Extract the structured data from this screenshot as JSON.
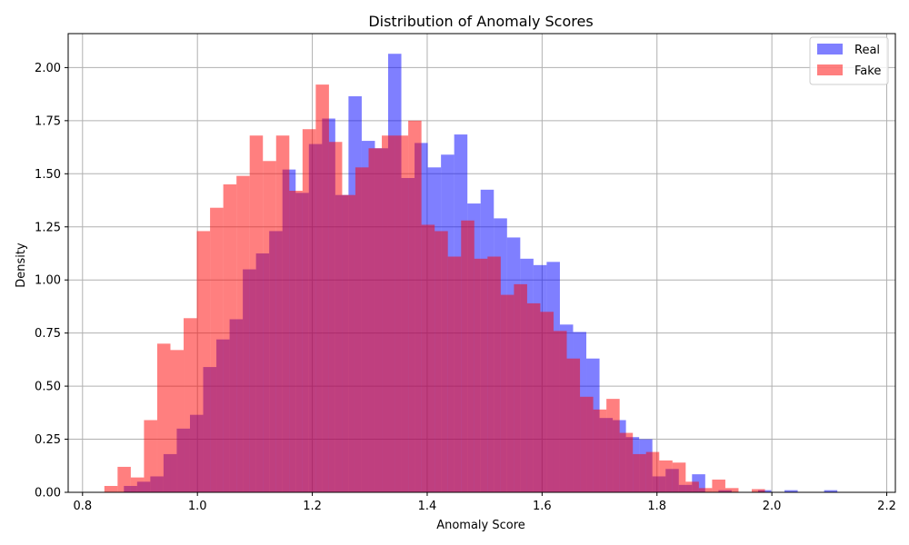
{
  "chart_data": {
    "type": "bar",
    "title": "Distribution of Anomaly Scores",
    "xlabel": "Anomaly Score",
    "ylabel": "Density",
    "xlim": [
      0.775,
      2.215
    ],
    "ylim": [
      0.0,
      2.16
    ],
    "xticks": [
      "0.8",
      "1.0",
      "1.2",
      "1.4",
      "1.6",
      "1.8",
      "2.0",
      "2.2"
    ],
    "yticks": [
      "0.00",
      "0.25",
      "0.50",
      "0.75",
      "1.00",
      "1.25",
      "1.50",
      "1.75",
      "2.00"
    ],
    "grid": true,
    "legend_position": "top-right",
    "series": [
      {
        "name": "Real",
        "color": "#0000ff",
        "opacity": 0.5,
        "bins": [
          [
            0.872,
            0.895,
            0.03
          ],
          [
            0.895,
            0.918,
            0.05
          ],
          [
            0.918,
            0.941,
            0.075
          ],
          [
            0.941,
            0.964,
            0.18
          ],
          [
            0.964,
            0.987,
            0.3
          ],
          [
            0.987,
            1.01,
            0.365
          ],
          [
            1.01,
            1.033,
            0.59
          ],
          [
            1.033,
            1.056,
            0.72
          ],
          [
            1.056,
            1.079,
            0.815
          ],
          [
            1.079,
            1.102,
            1.05
          ],
          [
            1.102,
            1.125,
            1.125
          ],
          [
            1.125,
            1.148,
            1.23
          ],
          [
            1.148,
            1.171,
            1.52
          ],
          [
            1.171,
            1.194,
            1.41
          ],
          [
            1.194,
            1.217,
            1.64
          ],
          [
            1.217,
            1.24,
            1.76
          ],
          [
            1.24,
            1.263,
            1.4
          ],
          [
            1.263,
            1.286,
            1.865
          ],
          [
            1.286,
            1.309,
            1.655
          ],
          [
            1.309,
            1.332,
            1.62
          ],
          [
            1.332,
            1.355,
            2.065
          ],
          [
            1.355,
            1.378,
            1.48
          ],
          [
            1.378,
            1.401,
            1.645
          ],
          [
            1.401,
            1.424,
            1.53
          ],
          [
            1.424,
            1.447,
            1.59
          ],
          [
            1.447,
            1.47,
            1.685
          ],
          [
            1.47,
            1.493,
            1.36
          ],
          [
            1.493,
            1.516,
            1.425
          ],
          [
            1.516,
            1.539,
            1.29
          ],
          [
            1.539,
            1.562,
            1.2
          ],
          [
            1.562,
            1.585,
            1.1
          ],
          [
            1.585,
            1.608,
            1.07
          ],
          [
            1.608,
            1.631,
            1.085
          ],
          [
            1.631,
            1.654,
            0.79
          ],
          [
            1.654,
            1.677,
            0.755
          ],
          [
            1.677,
            1.7,
            0.63
          ],
          [
            1.7,
            1.723,
            0.35
          ],
          [
            1.723,
            1.746,
            0.34
          ],
          [
            1.746,
            1.769,
            0.26
          ],
          [
            1.769,
            1.792,
            0.25
          ],
          [
            1.792,
            1.815,
            0.075
          ],
          [
            1.815,
            1.838,
            0.11
          ],
          [
            1.838,
            1.861,
            0.035
          ],
          [
            1.861,
            1.884,
            0.085
          ],
          [
            1.884,
            1.907,
            0.0
          ],
          [
            1.907,
            1.93,
            0.01
          ],
          [
            1.93,
            1.953,
            0.0
          ],
          [
            1.953,
            1.976,
            0.0
          ],
          [
            1.976,
            1.999,
            0.01
          ],
          [
            1.999,
            2.022,
            0.0
          ],
          [
            2.022,
            2.045,
            0.01
          ],
          [
            2.045,
            2.068,
            0.0
          ],
          [
            2.068,
            2.091,
            0.0
          ],
          [
            2.091,
            2.114,
            0.01
          ]
        ]
      },
      {
        "name": "Fake",
        "color": "#ff0000",
        "opacity": 0.5,
        "bins": [
          [
            0.838,
            0.861,
            0.03
          ],
          [
            0.861,
            0.884,
            0.12
          ],
          [
            0.884,
            0.907,
            0.07
          ],
          [
            0.907,
            0.93,
            0.34
          ],
          [
            0.93,
            0.953,
            0.7
          ],
          [
            0.953,
            0.976,
            0.67
          ],
          [
            0.976,
            0.999,
            0.82
          ],
          [
            0.999,
            1.022,
            1.23
          ],
          [
            1.022,
            1.045,
            1.34
          ],
          [
            1.045,
            1.068,
            1.45
          ],
          [
            1.068,
            1.091,
            1.49
          ],
          [
            1.091,
            1.114,
            1.68
          ],
          [
            1.114,
            1.137,
            1.56
          ],
          [
            1.137,
            1.16,
            1.68
          ],
          [
            1.16,
            1.183,
            1.42
          ],
          [
            1.183,
            1.206,
            1.71
          ],
          [
            1.206,
            1.229,
            1.92
          ],
          [
            1.229,
            1.252,
            1.65
          ],
          [
            1.252,
            1.275,
            1.4
          ],
          [
            1.275,
            1.298,
            1.53
          ],
          [
            1.298,
            1.321,
            1.62
          ],
          [
            1.321,
            1.344,
            1.68
          ],
          [
            1.344,
            1.367,
            1.68
          ],
          [
            1.367,
            1.39,
            1.75
          ],
          [
            1.39,
            1.413,
            1.26
          ],
          [
            1.413,
            1.436,
            1.23
          ],
          [
            1.436,
            1.459,
            1.11
          ],
          [
            1.459,
            1.482,
            1.28
          ],
          [
            1.482,
            1.505,
            1.1
          ],
          [
            1.505,
            1.528,
            1.11
          ],
          [
            1.528,
            1.551,
            0.93
          ],
          [
            1.551,
            1.574,
            0.98
          ],
          [
            1.574,
            1.597,
            0.89
          ],
          [
            1.597,
            1.62,
            0.85
          ],
          [
            1.62,
            1.643,
            0.76
          ],
          [
            1.643,
            1.666,
            0.63
          ],
          [
            1.666,
            1.689,
            0.45
          ],
          [
            1.689,
            1.712,
            0.39
          ],
          [
            1.712,
            1.735,
            0.44
          ],
          [
            1.735,
            1.758,
            0.28
          ],
          [
            1.758,
            1.781,
            0.18
          ],
          [
            1.781,
            1.804,
            0.19
          ],
          [
            1.804,
            1.827,
            0.15
          ],
          [
            1.827,
            1.85,
            0.14
          ],
          [
            1.85,
            1.873,
            0.05
          ],
          [
            1.873,
            1.896,
            0.02
          ],
          [
            1.896,
            1.919,
            0.06
          ],
          [
            1.919,
            1.942,
            0.02
          ],
          [
            1.942,
            1.965,
            0.0
          ],
          [
            1.965,
            1.988,
            0.015
          ]
        ]
      }
    ]
  }
}
